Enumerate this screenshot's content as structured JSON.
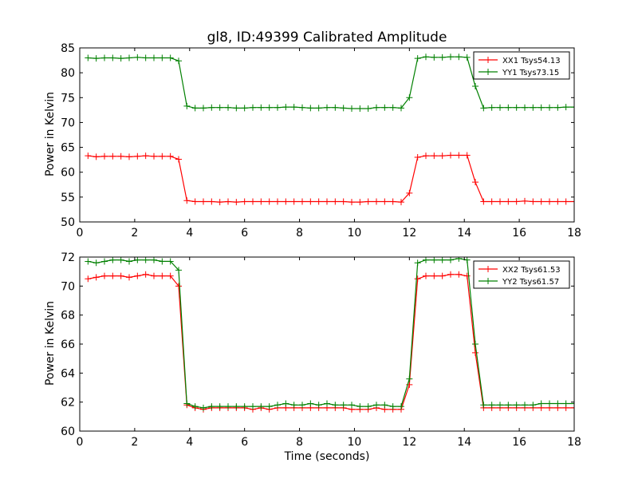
{
  "chart_data": [
    {
      "type": "line",
      "title": "gl8, ID:49399 Calibrated Amplitude",
      "xlabel": "",
      "ylabel": "Power in Kelvin",
      "xlim": [
        0,
        18
      ],
      "ylim": [
        50,
        85
      ],
      "xticks": [
        0,
        2,
        4,
        6,
        8,
        10,
        12,
        14,
        16,
        18
      ],
      "yticks": [
        50,
        55,
        60,
        65,
        70,
        75,
        80,
        85
      ],
      "legend_position": "top-right",
      "x": [
        0.3,
        0.6,
        0.9,
        1.2,
        1.5,
        1.8,
        2.1,
        2.4,
        2.7,
        3.0,
        3.3,
        3.6,
        3.9,
        4.2,
        4.5,
        4.8,
        5.1,
        5.4,
        5.7,
        6.0,
        6.3,
        6.6,
        6.9,
        7.2,
        7.5,
        7.8,
        8.1,
        8.4,
        8.7,
        9.0,
        9.3,
        9.6,
        9.9,
        10.2,
        10.5,
        10.8,
        11.1,
        11.4,
        11.7,
        12.0,
        12.3,
        12.6,
        12.9,
        13.2,
        13.5,
        13.8,
        14.1,
        14.4,
        14.7,
        15.0,
        15.3,
        15.6,
        15.9,
        16.2,
        16.5,
        16.8,
        17.1,
        17.4,
        17.7,
        18.0
      ],
      "series": [
        {
          "name": "XX1 Tsys54.13",
          "color": "#ff0000",
          "values": [
            63.3,
            63.1,
            63.2,
            63.2,
            63.2,
            63.1,
            63.2,
            63.3,
            63.2,
            63.2,
            63.2,
            62.6,
            54.3,
            54.1,
            54.1,
            54.1,
            54.0,
            54.1,
            54.0,
            54.1,
            54.1,
            54.1,
            54.1,
            54.1,
            54.1,
            54.1,
            54.1,
            54.1,
            54.1,
            54.1,
            54.1,
            54.1,
            54.0,
            54.0,
            54.1,
            54.1,
            54.1,
            54.1,
            54.0,
            55.8,
            63.0,
            63.3,
            63.3,
            63.3,
            63.4,
            63.4,
            63.4,
            58.0,
            54.1,
            54.1,
            54.1,
            54.1,
            54.1,
            54.2,
            54.1,
            54.1,
            54.1,
            54.1,
            54.1,
            54.1
          ]
        },
        {
          "name": "YY1 Tsys73.15",
          "color": "#008000",
          "values": [
            83.0,
            82.9,
            83.0,
            83.0,
            82.9,
            83.0,
            83.1,
            83.0,
            83.0,
            83.0,
            83.0,
            82.4,
            73.3,
            72.9,
            72.9,
            73.0,
            73.0,
            73.0,
            72.9,
            72.9,
            73.0,
            73.0,
            73.0,
            73.0,
            73.1,
            73.1,
            73.0,
            72.9,
            72.9,
            73.0,
            73.0,
            72.9,
            72.8,
            72.8,
            72.8,
            73.0,
            73.0,
            73.0,
            72.9,
            75.0,
            82.9,
            83.2,
            83.1,
            83.1,
            83.2,
            83.2,
            83.1,
            77.3,
            72.9,
            73.0,
            73.0,
            73.0,
            73.0,
            73.0,
            73.0,
            73.0,
            73.0,
            73.0,
            73.1,
            73.1
          ]
        }
      ]
    },
    {
      "type": "line",
      "title": "",
      "xlabel": "Time (seconds)",
      "ylabel": "Power in Kelvin",
      "xlim": [
        0,
        18
      ],
      "ylim": [
        60,
        72
      ],
      "xticks": [
        0,
        2,
        4,
        6,
        8,
        10,
        12,
        14,
        16,
        18
      ],
      "yticks": [
        60,
        62,
        64,
        66,
        68,
        70,
        72
      ],
      "legend_position": "top-right",
      "x": [
        0.3,
        0.6,
        0.9,
        1.2,
        1.5,
        1.8,
        2.1,
        2.4,
        2.7,
        3.0,
        3.3,
        3.6,
        3.9,
        4.2,
        4.5,
        4.8,
        5.1,
        5.4,
        5.7,
        6.0,
        6.3,
        6.6,
        6.9,
        7.2,
        7.5,
        7.8,
        8.1,
        8.4,
        8.7,
        9.0,
        9.3,
        9.6,
        9.9,
        10.2,
        10.5,
        10.8,
        11.1,
        11.4,
        11.7,
        12.0,
        12.3,
        12.6,
        12.9,
        13.2,
        13.5,
        13.8,
        14.1,
        14.4,
        14.7,
        15.0,
        15.3,
        15.6,
        15.9,
        16.2,
        16.5,
        16.8,
        17.1,
        17.4,
        17.7,
        18.0
      ],
      "series": [
        {
          "name": "XX2 Tsys61.53",
          "color": "#ff0000",
          "values": [
            70.5,
            70.6,
            70.7,
            70.7,
            70.7,
            70.6,
            70.7,
            70.8,
            70.7,
            70.7,
            70.7,
            70.0,
            61.8,
            61.6,
            61.5,
            61.6,
            61.6,
            61.6,
            61.6,
            61.6,
            61.5,
            61.6,
            61.5,
            61.6,
            61.6,
            61.6,
            61.6,
            61.6,
            61.6,
            61.6,
            61.6,
            61.6,
            61.5,
            61.5,
            61.5,
            61.6,
            61.5,
            61.5,
            61.5,
            63.2,
            70.5,
            70.7,
            70.7,
            70.7,
            70.8,
            70.8,
            70.7,
            65.4,
            61.6,
            61.6,
            61.6,
            61.6,
            61.6,
            61.6,
            61.6,
            61.6,
            61.6,
            61.6,
            61.6,
            61.6
          ]
        },
        {
          "name": "YY2 Tsys61.57",
          "color": "#008000",
          "values": [
            71.7,
            71.6,
            71.7,
            71.8,
            71.8,
            71.7,
            71.8,
            71.8,
            71.8,
            71.7,
            71.7,
            71.1,
            61.9,
            61.7,
            61.6,
            61.7,
            61.7,
            61.7,
            61.7,
            61.7,
            61.7,
            61.7,
            61.7,
            61.8,
            61.9,
            61.8,
            61.8,
            61.9,
            61.8,
            61.9,
            61.8,
            61.8,
            61.8,
            61.7,
            61.7,
            61.8,
            61.8,
            61.7,
            61.7,
            63.6,
            71.6,
            71.8,
            71.8,
            71.8,
            71.8,
            71.9,
            71.8,
            66.0,
            61.8,
            61.8,
            61.8,
            61.8,
            61.8,
            61.8,
            61.8,
            61.9,
            61.9,
            61.9,
            61.9,
            61.9
          ]
        }
      ]
    }
  ]
}
